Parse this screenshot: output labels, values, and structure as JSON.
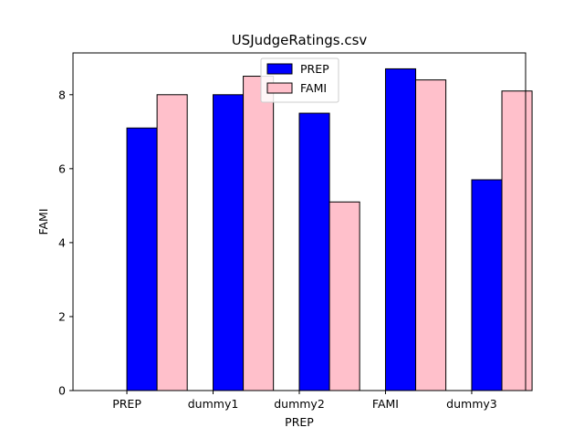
{
  "chart_data": {
    "type": "bar",
    "title": "USJudgeRatings.csv",
    "xlabel": "PREP",
    "ylabel": "FAMI",
    "categories": [
      "PREP",
      "dummy1",
      "dummy2",
      "FAMI",
      "dummy3"
    ],
    "series": [
      {
        "name": "PREP",
        "values": [
          7.1,
          8.0,
          7.5,
          8.7,
          5.7
        ],
        "color": "#0000ff"
      },
      {
        "name": "FAMI",
        "values": [
          8.0,
          8.5,
          5.1,
          8.4,
          8.1
        ],
        "color": "#ffc0cb"
      }
    ],
    "ylim": [
      0,
      9.13
    ],
    "yticks": [
      0,
      2,
      4,
      6,
      8
    ],
    "grid": false,
    "legend_position": "top-center"
  }
}
